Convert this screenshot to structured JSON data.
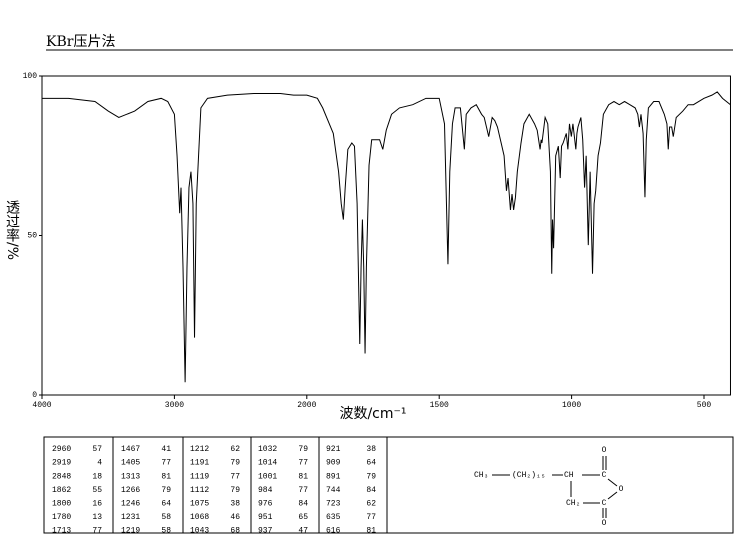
{
  "chart_data": {
    "type": "line",
    "title": "KBr压片法",
    "xlabel": "波数/cm⁻¹",
    "ylabel": "透过率/%",
    "x": [
      4000,
      3800,
      3600,
      3500,
      3420,
      3300,
      3200,
      3100,
      3050,
      3000,
      2980,
      2960,
      2950,
      2935,
      2919,
      2905,
      2890,
      2875,
      2860,
      2848,
      2835,
      2800,
      2750,
      2600,
      2400,
      2200,
      2100,
      2000,
      1960,
      1940,
      1900,
      1880,
      1870,
      1862,
      1855,
      1845,
      1830,
      1820,
      1810,
      1800,
      1795,
      1790,
      1785,
      1780,
      1775,
      1765,
      1755,
      1740,
      1725,
      1713,
      1700,
      1680,
      1650,
      1600,
      1550,
      1500,
      1480,
      1467,
      1460,
      1450,
      1440,
      1420,
      1405,
      1398,
      1380,
      1360,
      1340,
      1330,
      1313,
      1300,
      1290,
      1280,
      1266,
      1255,
      1246,
      1240,
      1231,
      1225,
      1219,
      1212,
      1205,
      1191,
      1180,
      1160,
      1140,
      1130,
      1119,
      1115,
      1112,
      1100,
      1090,
      1080,
      1075,
      1072,
      1068,
      1060,
      1050,
      1043,
      1038,
      1032,
      1020,
      1014,
      1008,
      1001,
      995,
      984,
      980,
      976,
      965,
      958,
      951,
      945,
      937,
      930,
      921,
      915,
      909,
      900,
      891,
      880,
      860,
      840,
      820,
      800,
      780,
      760,
      750,
      744,
      738,
      730,
      723,
      718,
      710,
      690,
      670,
      650,
      640,
      635,
      630,
      622,
      616,
      605,
      580,
      560,
      540,
      500,
      470,
      450,
      430,
      400
    ],
    "values": [
      93,
      93,
      92,
      89,
      87,
      89,
      92,
      93,
      92,
      88,
      75,
      57,
      65,
      40,
      4,
      40,
      65,
      70,
      60,
      18,
      60,
      90,
      93,
      94,
      94.5,
      94.5,
      94,
      94,
      93,
      90,
      82,
      70,
      60,
      55,
      65,
      77,
      79,
      78,
      60,
      16,
      40,
      55,
      40,
      13,
      40,
      72,
      80,
      80,
      80,
      77,
      83,
      88,
      90,
      91,
      93,
      93,
      85,
      41,
      70,
      85,
      90,
      90,
      77,
      88,
      90,
      91,
      88,
      87,
      81,
      87,
      86,
      84,
      79,
      75,
      64,
      68,
      58,
      63,
      58,
      62,
      70,
      79,
      85,
      88,
      85,
      83,
      77,
      80,
      79,
      87,
      85,
      70,
      38,
      55,
      46,
      75,
      78,
      68,
      78,
      79,
      82,
      77,
      85,
      81,
      85,
      77,
      82,
      84,
      87,
      80,
      65,
      75,
      47,
      70,
      38,
      60,
      64,
      75,
      79,
      88,
      91,
      92,
      91,
      92,
      91,
      90,
      88,
      84,
      88,
      82,
      62,
      80,
      90,
      92,
      92,
      88,
      85,
      77,
      84,
      84,
      81,
      87,
      89,
      91,
      91,
      93,
      94,
      95,
      93,
      91
    ],
    "xlim": [
      4000,
      400
    ],
    "xticks": [
      4000,
      3000,
      2000,
      1500,
      1000,
      500
    ],
    "ylim": [
      0,
      100
    ],
    "yticks": [
      0,
      50,
      100
    ],
    "color": "#000000"
  },
  "peak_table": [
    [
      2960,
      57
    ],
    [
      2919,
      4
    ],
    [
      2848,
      18
    ],
    [
      1862,
      55
    ],
    [
      1800,
      16
    ],
    [
      1780,
      13
    ],
    [
      1713,
      77
    ],
    [
      1467,
      41
    ],
    [
      1405,
      77
    ],
    [
      1313,
      81
    ],
    [
      1266,
      79
    ],
    [
      1246,
      64
    ],
    [
      1231,
      58
    ],
    [
      1219,
      58
    ],
    [
      1212,
      62
    ],
    [
      1191,
      79
    ],
    [
      1119,
      77
    ],
    [
      1112,
      79
    ],
    [
      1075,
      38
    ],
    [
      1068,
      46
    ],
    [
      1043,
      68
    ],
    [
      1032,
      79
    ],
    [
      1014,
      77
    ],
    [
      1001,
      81
    ],
    [
      984,
      77
    ],
    [
      976,
      84
    ],
    [
      951,
      65
    ],
    [
      937,
      47
    ],
    [
      921,
      38
    ],
    [
      909,
      64
    ],
    [
      891,
      79
    ],
    [
      744,
      84
    ],
    [
      723,
      62
    ],
    [
      635,
      77
    ],
    [
      616,
      81
    ]
  ],
  "structure": {
    "labels": [
      "CH₃",
      "(CH₂)₁₅",
      "CH",
      "C",
      "O",
      "O",
      "CH₂",
      "C",
      "O"
    ]
  }
}
